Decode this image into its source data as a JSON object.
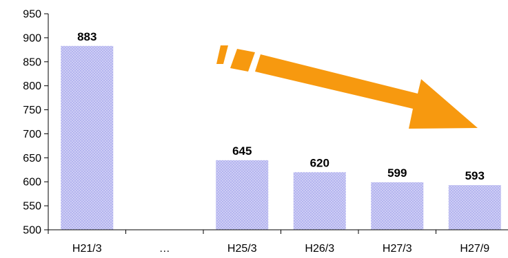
{
  "chart_data": {
    "type": "bar",
    "categories": [
      "H21/3",
      "…",
      "H25/3",
      "H26/3",
      "H27/3",
      "H27/9"
    ],
    "values": [
      883,
      null,
      645,
      620,
      599,
      593
    ],
    "data_labels": [
      "883",
      "",
      "645",
      "620",
      "599",
      "593"
    ],
    "y_ticks": [
      "500",
      "550",
      "600",
      "650",
      "700",
      "750",
      "800",
      "850",
      "900",
      "950"
    ],
    "ylim": [
      500,
      950
    ],
    "title": "",
    "xlabel": "",
    "ylabel": "",
    "grid": false,
    "legend": "none",
    "bar_color": "#b4b4ef",
    "bar_dot_color": "#ffffff",
    "annotation": {
      "type": "trend-arrow",
      "direction": "down-right",
      "color": "#f7990f"
    }
  }
}
